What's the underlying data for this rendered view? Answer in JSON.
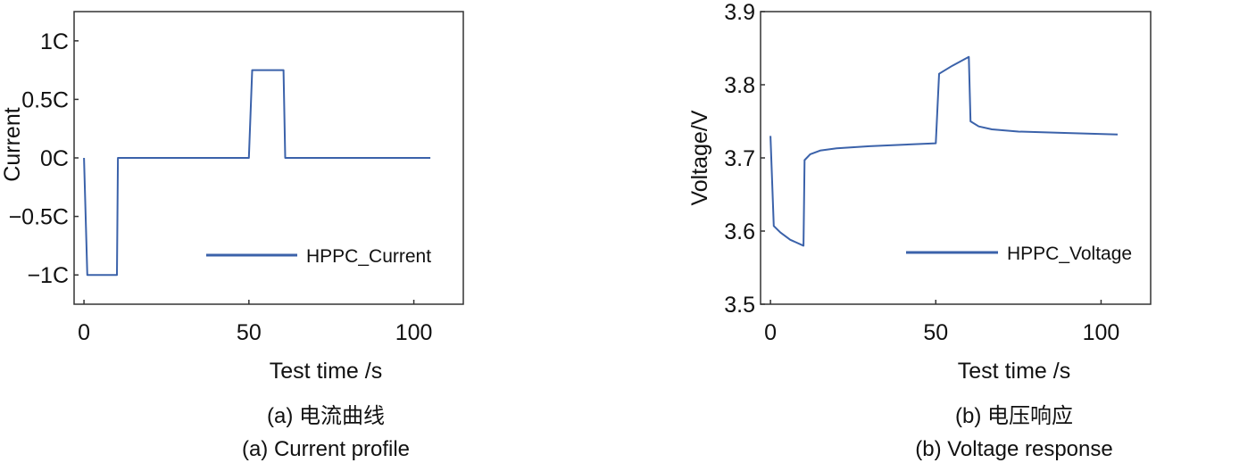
{
  "colors": {
    "line": "#3b62aa",
    "axis": "#333333"
  },
  "chart_data": [
    {
      "type": "line",
      "title": "",
      "xlabel": "Test time /s",
      "ylabel": "Current",
      "xlim": [
        -3,
        115
      ],
      "ylim": [
        -1.25,
        1.25
      ],
      "xticks": [
        0,
        50,
        100
      ],
      "xtick_labels": [
        "0",
        "50",
        "100"
      ],
      "yticks": [
        1,
        0.5,
        0,
        -0.5,
        -1
      ],
      "ytick_labels": [
        "1C",
        "0.5C",
        "0C",
        "−0.5C",
        "−1C"
      ],
      "grid": false,
      "legend_position": "lower-right",
      "caption_cn": "(a) 电流曲线",
      "caption_en": "(a) Current profile",
      "series": [
        {
          "name": "HPPC_Current",
          "x": [
            0,
            1,
            10,
            10.3,
            50,
            51,
            60.5,
            61,
            105
          ],
          "y": [
            0,
            -1,
            -1,
            0,
            0,
            0.75,
            0.75,
            0,
            0
          ]
        }
      ]
    },
    {
      "type": "line",
      "title": "",
      "xlabel": "Test time /s",
      "ylabel": "Voltage/V",
      "xlim": [
        -3,
        115
      ],
      "ylim": [
        3.5,
        3.9
      ],
      "xticks": [
        0,
        50,
        100
      ],
      "xtick_labels": [
        "0",
        "50",
        "100"
      ],
      "yticks": [
        3.9,
        3.8,
        3.7,
        3.6,
        3.5
      ],
      "ytick_labels": [
        "3.9",
        "3.8",
        "3.7",
        "3.6",
        "3.5"
      ],
      "grid": false,
      "legend_position": "lower-right",
      "caption_cn": "(b) 电压响应",
      "caption_en": "(b) Voltage response",
      "series": [
        {
          "name": "HPPC_Voltage",
          "x": [
            0,
            1,
            3,
            6,
            10,
            10.3,
            12,
            15,
            20,
            30,
            40,
            50,
            51,
            55,
            60,
            60.5,
            63,
            67,
            75,
            90,
            105
          ],
          "y": [
            3.73,
            3.607,
            3.598,
            3.588,
            3.58,
            3.697,
            3.705,
            3.71,
            3.713,
            3.716,
            3.718,
            3.72,
            3.815,
            3.826,
            3.838,
            3.75,
            3.743,
            3.739,
            3.736,
            3.734,
            3.732
          ]
        }
      ]
    }
  ]
}
